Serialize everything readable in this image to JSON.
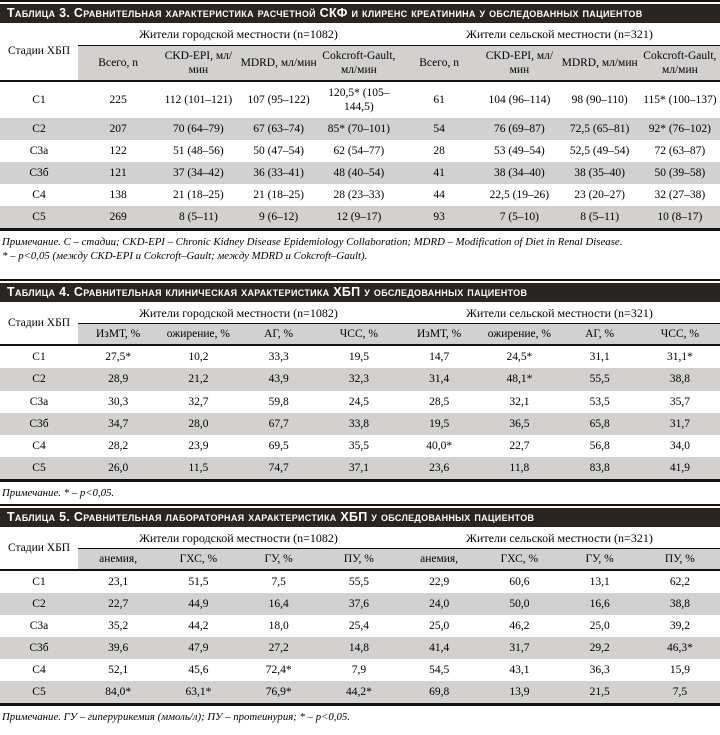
{
  "colors": {
    "title_bar_bg": "#2b2522",
    "title_bar_text": "#ffffff",
    "stripe_gray": "#d3d1cf",
    "rule_black": "#141210",
    "page_bg": "#ffffff"
  },
  "tables": [
    {
      "title": "Таблица 3. Сравнительная характеристика расчетной СКФ и клиренс креатинина у обследованных пациентов",
      "stage_header": "Стадии ХБП",
      "groups": [
        {
          "label": "Жители городской местности (n=1082)",
          "columns": [
            "Всего, n",
            "CKD-EPI, мл/мин",
            "MDRD, мл/мин",
            "Cokcroft-Gault, мл/мин"
          ]
        },
        {
          "label": "Жители сельской местности (n=321)",
          "columns": [
            "Всего, n",
            "CKD-EPI, мл/мин",
            "MDRD, мл/мин",
            "Cokcroft-Gault, мл/мин"
          ]
        }
      ],
      "rows": [
        {
          "stage": "С1",
          "values": [
            "225",
            "112 (101–121)",
            "107 (95–122)",
            "120,5* (105–144,5)",
            "61",
            "104 (96–114)",
            "98 (90–110)",
            "115* (100–137)"
          ]
        },
        {
          "stage": "С2",
          "values": [
            "207",
            "70 (64–79)",
            "67 (63–74)",
            "85* (70–101)",
            "54",
            "76 (69–87)",
            "72,5 (65–81)",
            "92* (76–102)"
          ]
        },
        {
          "stage": "С3а",
          "values": [
            "122",
            "51 (48–56)",
            "50 (47–54)",
            "62 (54–77)",
            "28",
            "53 (49–54)",
            "52,5 (49–54)",
            "72 (63–87)"
          ]
        },
        {
          "stage": "С3б",
          "values": [
            "121",
            "37 (34–42)",
            "36 (33–41)",
            "48 (40–54)",
            "41",
            "38 (34–40)",
            "38 (35–40)",
            "50 (39–58)"
          ]
        },
        {
          "stage": "С4",
          "values": [
            "138",
            "21 (18–25)",
            "21 (18–25)",
            "28 (23–33)",
            "44",
            "22,5 (19–26)",
            "23 (20–27)",
            "32 (27–38)"
          ]
        },
        {
          "stage": "С5",
          "values": [
            "269",
            "8 (5–11)",
            "9 (6–12)",
            "12 (9–17)",
            "93",
            "7 (5–10)",
            "8 (5–11)",
            "10 (8–17)"
          ]
        }
      ],
      "note": [
        "Примечание. С – стадии; CKD-EPI – Chronic Kidney Disease Epidemiology Collaboration; MDRD – Modification of Diet in Renal Disease.",
        "* – p<0,05 (между CKD-EPI и Cokcroft–Gault; между MDRD и Cokcroft–Gault)."
      ]
    },
    {
      "title": "Таблица 4. Сравнительная клиническая характеристика ХБП у обследованных пациентов",
      "stage_header": "Стадии ХБП",
      "groups": [
        {
          "label": "Жители городской местности (n=1082)",
          "columns": [
            "ИзМТ, %",
            "ожирение, %",
            "АГ, %",
            "ЧСС, %"
          ]
        },
        {
          "label": "Жители сельской местности (n=321)",
          "columns": [
            "ИзМТ, %",
            "ожирение, %",
            "АГ, %",
            "ЧСС, %"
          ]
        }
      ],
      "rows": [
        {
          "stage": "С1",
          "values": [
            "27,5*",
            "10,2",
            "33,3",
            "19,5",
            "14,7",
            "24,5*",
            "31,1",
            "31,1*"
          ]
        },
        {
          "stage": "С2",
          "values": [
            "28,9",
            "21,2",
            "43,9",
            "32,3",
            "31,4",
            "48,1*",
            "55,5",
            "38,8"
          ]
        },
        {
          "stage": "С3а",
          "values": [
            "30,3",
            "32,7",
            "59,8",
            "24,5",
            "28,5",
            "32,1",
            "53,5",
            "35,7"
          ]
        },
        {
          "stage": "С3б",
          "values": [
            "34,7",
            "28,0",
            "67,7",
            "33,8",
            "19,5",
            "36,5",
            "65,8",
            "31,7"
          ]
        },
        {
          "stage": "С4",
          "values": [
            "28,2",
            "23,9",
            "69,5",
            "35,5",
            "40,0*",
            "22,7",
            "56,8",
            "34,0"
          ]
        },
        {
          "stage": "С5",
          "values": [
            "26,0",
            "11,5",
            "74,7",
            "37,1",
            "23,6",
            "11,8",
            "83,8",
            "41,9"
          ]
        }
      ],
      "note": [
        "Примечание. * – p<0,05."
      ]
    },
    {
      "title": "Таблица 5. Сравнительная лабораторная характеристика ХБП у обследованных пациентов",
      "stage_header": "Стадии ХБП",
      "groups": [
        {
          "label": "Жители городской местности (n=1082)",
          "columns": [
            "анемия,",
            "ГХС, %",
            "ГУ, %",
            "ПУ, %"
          ]
        },
        {
          "label": "Жители сельской местности (n=321)",
          "columns": [
            "анемия,",
            "ГХС, %",
            "ГУ, %",
            "ПУ, %"
          ]
        }
      ],
      "rows": [
        {
          "stage": "С1",
          "values": [
            "23,1",
            "51,5",
            "7,5",
            "55,5",
            "22,9",
            "60,6",
            "13,1",
            "62,2"
          ]
        },
        {
          "stage": "С2",
          "values": [
            "22,7",
            "44,9",
            "16,4",
            "37,6",
            "24,0",
            "50,0",
            "16,6",
            "38,8"
          ]
        },
        {
          "stage": "С3а",
          "values": [
            "35,2",
            "44,2",
            "18,0",
            "25,4",
            "25,0",
            "46,2",
            "25,0",
            "39,2"
          ]
        },
        {
          "stage": "С3б",
          "values": [
            "39,6",
            "47,9",
            "27,2",
            "14,8",
            "41,4",
            "31,7",
            "29,2",
            "46,3*"
          ]
        },
        {
          "stage": "С4",
          "values": [
            "52,1",
            "45,6",
            "72,4*",
            "7,9",
            "54,5",
            "43,1",
            "36,3",
            "15,9"
          ]
        },
        {
          "stage": "С5",
          "values": [
            "84,0*",
            "63,1*",
            "76,9*",
            "44,2*",
            "69,8",
            "13,9",
            "21,5",
            "7,5"
          ]
        }
      ],
      "note": [
        "Примечание. ГУ – гиперурикемия (ммоль/л); ПУ – протеинурия; * – p<0,05."
      ]
    }
  ]
}
